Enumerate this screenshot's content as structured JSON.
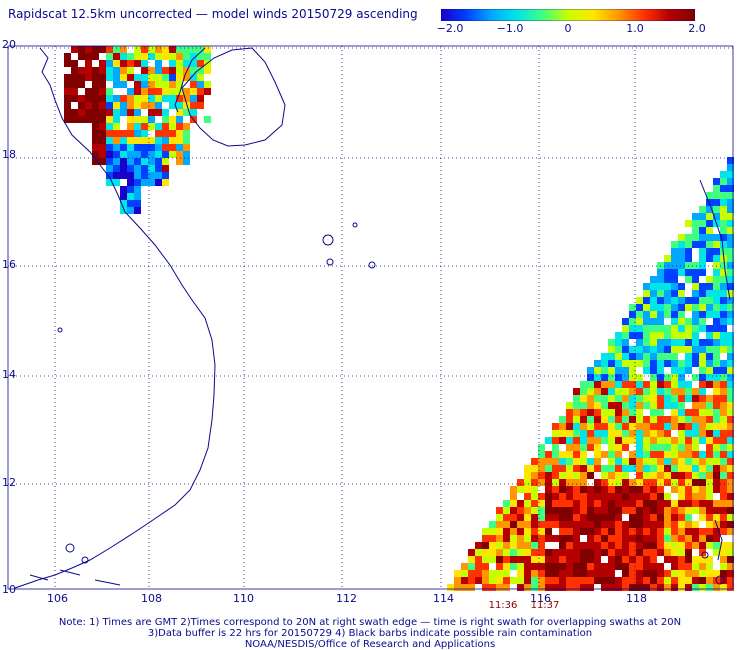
{
  "title": "Rapidscat 12.5km uncorrected — model winds 20150729 ascending",
  "colorbar": {
    "labels": [
      "−2.0",
      "−1.0",
      "0",
      "1.0",
      "2.0"
    ],
    "min": -2.0,
    "max": 2.0,
    "colors": [
      "#1a00c8",
      "#0040ff",
      "#00a8ff",
      "#00e6e6",
      "#40ff80",
      "#c8ff00",
      "#ffe600",
      "#ff9600",
      "#ff3200",
      "#b40000",
      "#800000"
    ]
  },
  "axes": {
    "x_ticks": [
      "106",
      "108",
      "110",
      "112",
      "114",
      "116",
      "118"
    ],
    "x_values": [
      106,
      108,
      110,
      112,
      114,
      116,
      118
    ],
    "y_ticks": [
      "20",
      "18",
      "16",
      "14",
      "12",
      "10"
    ],
    "y_values": [
      20,
      18,
      16,
      14,
      12,
      10
    ],
    "lon_range": [
      105,
      120
    ],
    "lat_range": [
      10,
      20
    ],
    "grid": "dotted"
  },
  "swath_times": [
    "11:36",
    "11:37"
  ],
  "notes": [
    "Note: 1) Times are GMT 2)Times correspond to 20N at right swath edge — time is right swath for overlapping swaths at 20N",
    "3)Data buffer is 22 hrs for 20150729 4) Black barbs indicate possible rain contamination",
    "NOAA/NESDIS/Office of Research and Applications"
  ]
}
